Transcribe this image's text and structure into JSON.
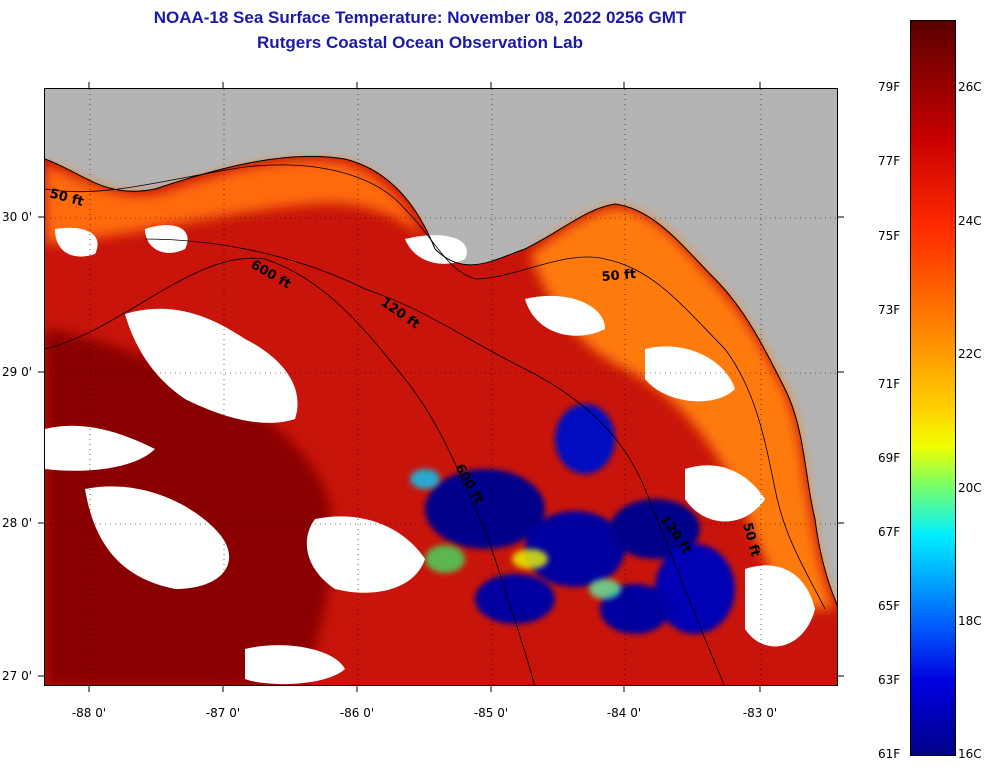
{
  "title": {
    "line1": "NOAA-18 Sea Surface Temperature:  November 08, 2022 0256 GMT",
    "line2": "Rutgers Coastal Ocean Observation Lab"
  },
  "map": {
    "latitude_labels": [
      "30 0'",
      "29 0'",
      "28 0'",
      "27 0'"
    ],
    "longitude_labels": [
      "-88 0'",
      "-87 0'",
      "-86 0'",
      "-85 0'",
      "-84 0'",
      "-83 0'"
    ],
    "isobath_labels": [
      "50 ft",
      "600 ft",
      "120 ft",
      "50 ft",
      "600 ft",
      "120 ft",
      "50 ft"
    ],
    "colors": {
      "land": "#b4b4b4",
      "cloud": "#ffffff",
      "ocean_warm": "#c01a00",
      "shelf": "#ff6a10",
      "cold": "#00008c"
    }
  },
  "colorbar": {
    "fahrenheit_labels": [
      "79F",
      "77F",
      "75F",
      "73F",
      "71F",
      "69F",
      "67F",
      "65F",
      "63F",
      "61F"
    ],
    "celsius_labels": [
      "26C",
      "24C",
      "22C",
      "20C",
      "18C",
      "16C"
    ]
  }
}
